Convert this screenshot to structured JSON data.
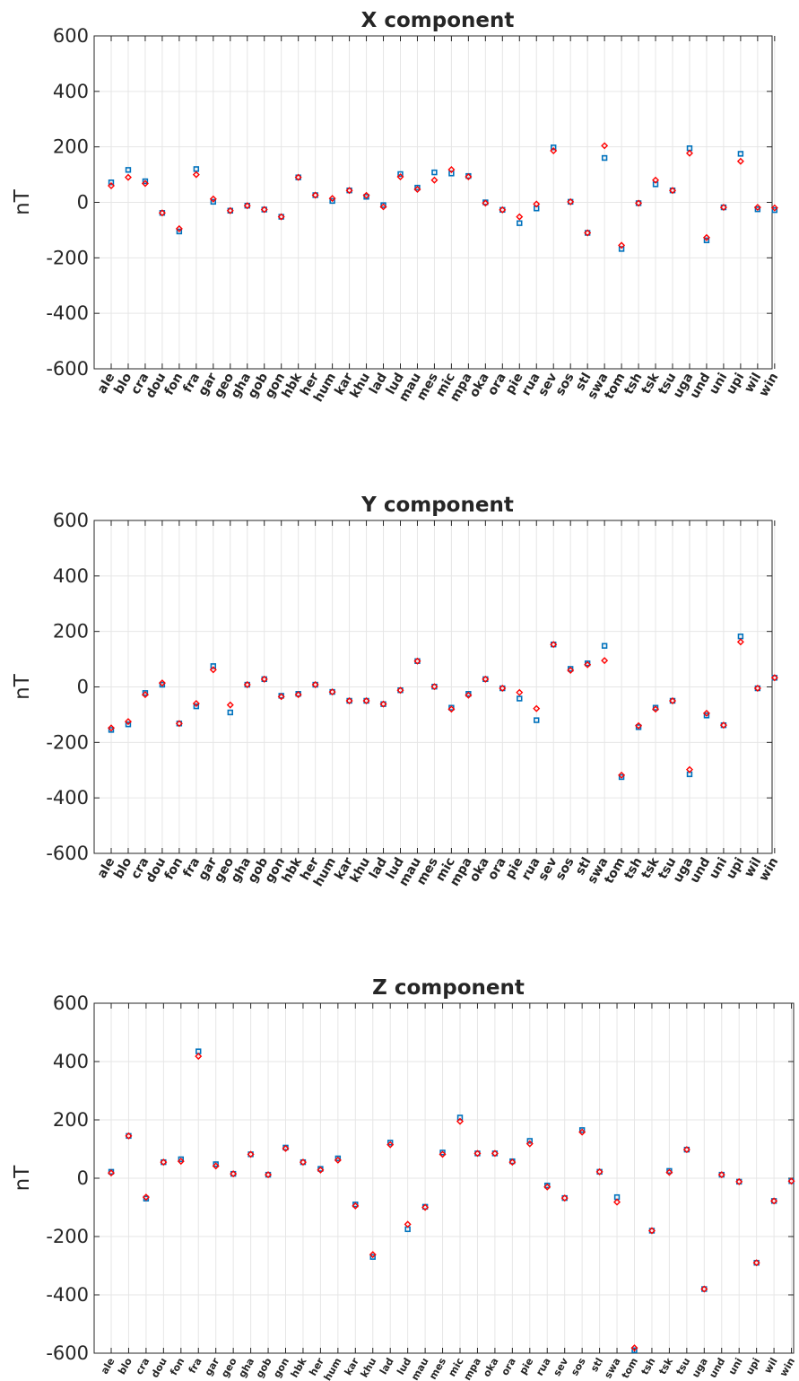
{
  "chart_data": [
    {
      "type": "scatter",
      "title": "X component",
      "ylabel": "nT",
      "xlabel": "",
      "ylim": [
        -600,
        600
      ],
      "yticks": [
        -600,
        -400,
        -200,
        0,
        200,
        400,
        600
      ],
      "grid": true,
      "categories": [
        "ale",
        "blo",
        "cra",
        "dou",
        "fon",
        "fra",
        "gar",
        "geo",
        "gha",
        "gob",
        "gon",
        "hbk",
        "her",
        "hum",
        "kar",
        "khu",
        "lad",
        "lud",
        "mau",
        "mes",
        "mic",
        "mpa",
        "oka",
        "ora",
        "pie",
        "rua",
        "sev",
        "sos",
        "stl",
        "swa",
        "tom",
        "tsh",
        "tsk",
        "tsu",
        "uga",
        "und",
        "uni",
        "upi",
        "wil",
        "win"
      ],
      "series": [
        {
          "color": "#0072bd",
          "marker": "square",
          "values": [
            72,
            117,
            76,
            -38,
            -105,
            120,
            2,
            -30,
            -12,
            -26,
            -52,
            90,
            26,
            5,
            43,
            20,
            -10,
            102,
            53,
            108,
            104,
            95,
            0,
            -27,
            -75,
            -22,
            198,
            2,
            -110,
            160,
            -168,
            -3,
            65,
            43,
            195,
            -137,
            -18,
            175,
            -25,
            -28
          ]
        },
        {
          "color": "#ff0000",
          "marker": "diamond",
          "values": [
            60,
            90,
            68,
            -38,
            -95,
            100,
            12,
            -30,
            -12,
            -26,
            -52,
            90,
            26,
            14,
            43,
            25,
            -16,
            92,
            47,
            80,
            118,
            92,
            -3,
            -27,
            -52,
            -6,
            186,
            2,
            -110,
            204,
            -155,
            -3,
            80,
            43,
            177,
            -127,
            -18,
            148,
            -18,
            -20
          ]
        }
      ]
    },
    {
      "type": "scatter",
      "title": "Y component",
      "ylabel": "nT",
      "xlabel": "",
      "ylim": [
        -600,
        600
      ],
      "yticks": [
        -600,
        -400,
        -200,
        0,
        200,
        400,
        600
      ],
      "grid": true,
      "categories": [
        "ale",
        "blo",
        "cra",
        "dou",
        "fon",
        "fra",
        "gar",
        "geo",
        "gha",
        "gob",
        "gon",
        "hbk",
        "her",
        "hum",
        "kar",
        "khu",
        "lad",
        "lud",
        "mau",
        "mes",
        "mic",
        "mpa",
        "oka",
        "ora",
        "pie",
        "rua",
        "sev",
        "sos",
        "stl",
        "swa",
        "tom",
        "tsh",
        "tsk",
        "tsu",
        "uga",
        "und",
        "uni",
        "upi",
        "wil",
        "win"
      ],
      "series": [
        {
          "color": "#0072bd",
          "marker": "square",
          "values": [
            -155,
            -135,
            -22,
            8,
            -132,
            -70,
            75,
            -92,
            8,
            28,
            -32,
            -25,
            8,
            -18,
            -50,
            -50,
            -62,
            -12,
            93,
            1,
            -75,
            -25,
            28,
            -5,
            -42,
            -120,
            153,
            65,
            85,
            148,
            -325,
            -145,
            -75,
            -50,
            -315,
            -103,
            -138,
            182,
            -5,
            33
          ]
        },
        {
          "color": "#ff0000",
          "marker": "diamond",
          "values": [
            -148,
            -125,
            -28,
            14,
            -132,
            -60,
            62,
            -65,
            8,
            28,
            -35,
            -28,
            8,
            -18,
            -50,
            -50,
            -62,
            -12,
            93,
            1,
            -80,
            -30,
            28,
            -5,
            -20,
            -78,
            153,
            60,
            80,
            95,
            -318,
            -140,
            -80,
            -50,
            -298,
            -95,
            -138,
            162,
            -5,
            33
          ]
        }
      ]
    },
    {
      "type": "scatter",
      "title": "Z component",
      "ylabel": "nT",
      "xlabel": "",
      "ylim": [
        -600,
        600
      ],
      "yticks": [
        -600,
        -400,
        -200,
        0,
        200,
        400,
        600
      ],
      "grid": true,
      "categories": [
        "ale",
        "blo",
        "cra",
        "dou",
        "fon",
        "fra",
        "gar",
        "geo",
        "gha",
        "gob",
        "gon",
        "hbk",
        "her",
        "hum",
        "kar",
        "khu",
        "lad",
        "lud",
        "mau",
        "mes",
        "mic",
        "mpa",
        "oka",
        "ora",
        "pie",
        "rua",
        "sev",
        "sos",
        "stl",
        "swa",
        "tom",
        "tsh",
        "tsk",
        "tsu",
        "uga",
        "und",
        "uni",
        "upi",
        "wil",
        "win"
      ],
      "series": [
        {
          "color": "#0072bd",
          "marker": "square",
          "values": [
            22,
            145,
            -70,
            55,
            65,
            435,
            48,
            15,
            82,
            12,
            105,
            55,
            32,
            68,
            -90,
            -270,
            122,
            -175,
            -98,
            88,
            208,
            85,
            85,
            58,
            128,
            -25,
            -68,
            165,
            22,
            -65,
            -590,
            -180,
            25,
            98,
            -380,
            12,
            -12,
            -290,
            -78,
            -10
          ]
        },
        {
          "color": "#ff0000",
          "marker": "diamond",
          "values": [
            18,
            145,
            -65,
            55,
            58,
            418,
            42,
            15,
            82,
            12,
            102,
            55,
            28,
            62,
            -95,
            -262,
            115,
            -158,
            -100,
            82,
            195,
            85,
            85,
            55,
            118,
            -30,
            -68,
            158,
            22,
            -82,
            -582,
            -180,
            20,
            98,
            -380,
            12,
            -12,
            -290,
            -78,
            -10
          ]
        }
      ]
    }
  ]
}
